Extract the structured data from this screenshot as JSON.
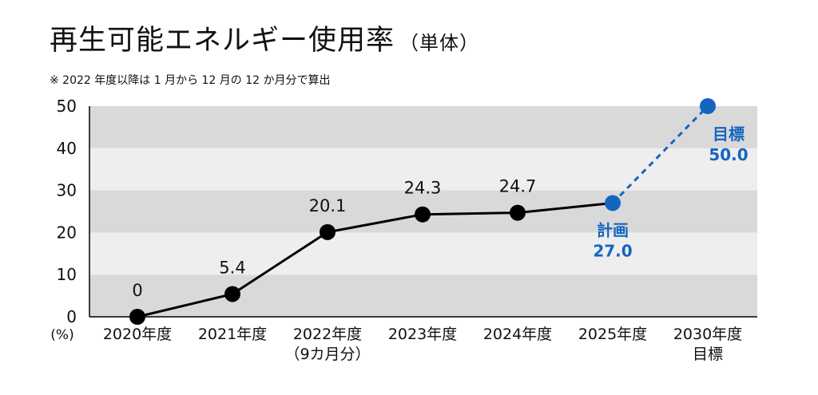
{
  "title": "再生可能エネルギー使用率",
  "title_unit": "（単体）",
  "note": "※ 2022 年度以降は 1 月から 12 月の 12 か月分で算出",
  "colors": {
    "actual": "#000000",
    "plan": "#1565c0",
    "band_dark": "#d9d9d9",
    "band_light": "#eeeeee"
  },
  "chart_data": {
    "type": "line",
    "ylabel": "(%)",
    "ylim": [
      0,
      50
    ],
    "yticks": [
      0,
      10,
      20,
      30,
      40,
      50
    ],
    "grid": "alternating horizontal bands",
    "categories": [
      {
        "lines": [
          "2020年度"
        ]
      },
      {
        "lines": [
          "2021年度"
        ]
      },
      {
        "lines": [
          "2022年度",
          "（9カ月分）"
        ]
      },
      {
        "lines": [
          "2023年度"
        ]
      },
      {
        "lines": [
          "2024年度"
        ]
      },
      {
        "lines": [
          "2025年度"
        ]
      },
      {
        "lines": [
          "2030年度",
          "目標"
        ]
      }
    ],
    "series": [
      {
        "style": "actual",
        "points": [
          {
            "x": 0,
            "y": 0,
            "label": "0"
          },
          {
            "x": 1,
            "y": 5.4,
            "label": "5.4"
          },
          {
            "x": 2,
            "y": 20.1,
            "label": "20.1"
          },
          {
            "x": 3,
            "y": 24.3,
            "label": "24.3"
          },
          {
            "x": 4,
            "y": 24.7,
            "label": "24.7"
          },
          {
            "x": 5,
            "y": 27.0
          }
        ]
      },
      {
        "style": "plan",
        "points": [
          {
            "x": 5,
            "y": 27.0,
            "label": "27.0",
            "tag": "計画"
          },
          {
            "x": 6,
            "y": 50.0,
            "label": "50.0",
            "tag": "目標"
          }
        ]
      }
    ]
  }
}
